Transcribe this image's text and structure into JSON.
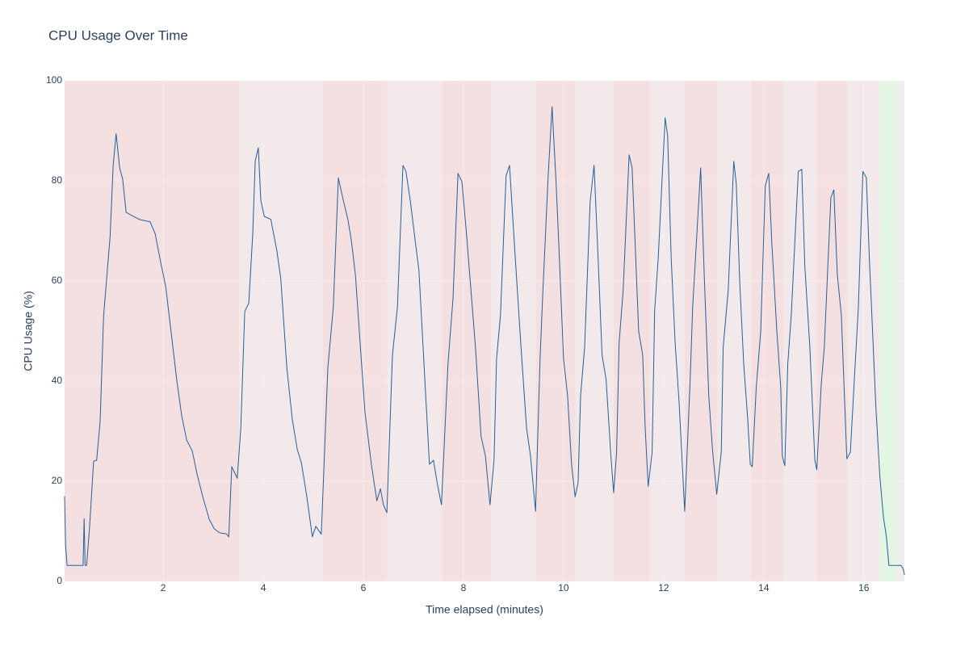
{
  "chart_data": {
    "type": "line",
    "title": "CPU Usage Over Time",
    "x_label": "Time elapsed (minutes)",
    "y_label": "CPU Usage (%)",
    "xlim": [
      0.03,
      16.81
    ],
    "ylim": [
      0,
      100
    ],
    "xticks": [
      2,
      4,
      6,
      8,
      10,
      12,
      14,
      16
    ],
    "yticks": [
      0,
      20,
      40,
      60,
      80,
      100
    ],
    "grid": true,
    "color": "#24609c",
    "shaded_regions": [
      {
        "x0": 0.03,
        "x1": 3.52,
        "color": "#f5e0e1"
      },
      {
        "x0": 3.52,
        "x1": 5.18,
        "color": "#f3e9eb"
      },
      {
        "x0": 5.18,
        "x1": 6.48,
        "color": "#f5e0e1"
      },
      {
        "x0": 6.48,
        "x1": 7.56,
        "color": "#f3e9eb"
      },
      {
        "x0": 7.56,
        "x1": 8.55,
        "color": "#f5e0e1"
      },
      {
        "x0": 8.55,
        "x1": 9.44,
        "color": "#f3e9eb"
      },
      {
        "x0": 9.44,
        "x1": 10.24,
        "color": "#f5e0e1"
      },
      {
        "x0": 10.24,
        "x1": 11.0,
        "color": "#f3e9eb"
      },
      {
        "x0": 11.0,
        "x1": 11.73,
        "color": "#f5e0e1"
      },
      {
        "x0": 11.73,
        "x1": 12.42,
        "color": "#f3e9eb"
      },
      {
        "x0": 12.42,
        "x1": 13.08,
        "color": "#f5e0e1"
      },
      {
        "x0": 13.08,
        "x1": 13.74,
        "color": "#f3e9eb"
      },
      {
        "x0": 13.74,
        "x1": 14.39,
        "color": "#f5e0e1"
      },
      {
        "x0": 14.39,
        "x1": 15.05,
        "color": "#f3e9eb"
      },
      {
        "x0": 15.05,
        "x1": 15.68,
        "color": "#f5e0e1"
      },
      {
        "x0": 15.68,
        "x1": 16.32,
        "color": "#f3e9eb"
      },
      {
        "x0": 16.32,
        "x1": 16.66,
        "color": "#e3f5e3"
      },
      {
        "x0": 16.66,
        "x1": 16.81,
        "color": "#eeeeee"
      }
    ],
    "x": [
      0.03,
      0.05,
      0.08,
      0.4,
      0.42,
      0.44,
      0.47,
      0.53,
      0.61,
      0.67,
      0.74,
      0.81,
      0.94,
      1.0,
      1.06,
      1.13,
      1.19,
      1.26,
      1.39,
      1.52,
      1.74,
      1.84,
      1.94,
      2.05,
      2.16,
      2.27,
      2.37,
      2.47,
      2.58,
      2.68,
      2.79,
      2.92,
      3.02,
      3.13,
      3.26,
      3.31,
      3.37,
      3.48,
      3.55,
      3.63,
      3.71,
      3.79,
      3.84,
      3.9,
      3.95,
      4.02,
      4.15,
      4.27,
      4.35,
      4.47,
      4.58,
      4.68,
      4.76,
      4.87,
      4.98,
      5.05,
      5.16,
      5.29,
      5.4,
      5.5,
      5.58,
      5.69,
      5.76,
      5.84,
      6.03,
      6.16,
      6.27,
      6.34,
      6.4,
      6.47,
      6.58,
      6.68,
      6.79,
      6.85,
      6.94,
      7.03,
      7.11,
      7.32,
      7.4,
      7.48,
      7.56,
      7.69,
      7.79,
      7.89,
      7.97,
      8.06,
      8.24,
      8.35,
      8.44,
      8.53,
      8.61,
      8.66,
      8.74,
      8.85,
      8.92,
      9.02,
      9.15,
      9.26,
      9.34,
      9.44,
      9.53,
      9.58,
      9.69,
      9.77,
      9.85,
      9.9,
      10.0,
      10.08,
      10.16,
      10.23,
      10.29,
      10.34,
      10.42,
      10.53,
      10.61,
      10.69,
      10.77,
      10.85,
      10.94,
      11.0,
      11.06,
      11.11,
      11.19,
      11.31,
      11.37,
      11.5,
      11.58,
      11.63,
      11.69,
      11.77,
      11.82,
      11.89,
      12.03,
      12.08,
      12.15,
      12.23,
      12.31,
      12.42,
      12.53,
      12.58,
      12.74,
      12.81,
      12.9,
      12.98,
      13.06,
      13.15,
      13.19,
      13.29,
      13.4,
      13.45,
      13.52,
      13.6,
      13.68,
      13.73,
      13.77,
      13.85,
      13.94,
      14.03,
      14.1,
      14.16,
      14.26,
      14.34,
      14.37,
      14.42,
      14.48,
      14.55,
      14.69,
      14.76,
      14.82,
      14.92,
      15.02,
      15.06,
      15.15,
      15.21,
      15.34,
      15.4,
      15.47,
      15.55,
      15.66,
      15.73,
      15.81,
      15.89,
      15.98,
      16.05,
      16.11,
      16.16,
      16.24,
      16.32,
      16.39,
      16.45,
      16.5,
      16.74,
      16.79,
      16.81
    ],
    "values": [
      17,
      7.3,
      3.2,
      3.2,
      12.5,
      3.2,
      3.2,
      11,
      24,
      24.2,
      32,
      53,
      69,
      83,
      89.4,
      82.6,
      80.3,
      73.7,
      73,
      72.3,
      71.8,
      69.4,
      64.2,
      58.9,
      49.7,
      40.3,
      33.1,
      28.2,
      26.1,
      21.3,
      16.9,
      12.4,
      10.5,
      9.7,
      9.5,
      8.9,
      22.9,
      20.6,
      30.6,
      53.9,
      55.6,
      69.4,
      84,
      86.6,
      76.1,
      72.9,
      72.3,
      66.1,
      60.5,
      42.7,
      32.3,
      26.3,
      23.7,
      16.9,
      8.9,
      11,
      9.4,
      42.7,
      54.8,
      80.6,
      76.9,
      72.3,
      68.1,
      61.3,
      33.9,
      23.4,
      16.1,
      18.5,
      15.3,
      13.7,
      45.2,
      54.8,
      83.1,
      81.9,
      75.8,
      68.5,
      62.1,
      23.4,
      24.2,
      19.4,
      15.3,
      43.5,
      56.5,
      81.5,
      79.8,
      69.4,
      46.8,
      29,
      25,
      15.3,
      24.2,
      44.4,
      53.2,
      81,
      83.1,
      66.9,
      46.8,
      30.6,
      25,
      14,
      44.4,
      56.5,
      80.6,
      94.8,
      79.8,
      68.5,
      44.4,
      37.1,
      23.4,
      16.9,
      19.7,
      37.1,
      46.8,
      75.8,
      83.1,
      64.5,
      45.2,
      40.3,
      25.8,
      17.7,
      25.8,
      47.6,
      58.1,
      85.2,
      82.6,
      50,
      45.2,
      30.6,
      19,
      25.8,
      54,
      64.5,
      92.6,
      89,
      64.5,
      47.6,
      35.5,
      14,
      40.3,
      54.8,
      82.6,
      61.3,
      37.1,
      25.8,
      17.4,
      25.8,
      46.8,
      58.1,
      83.9,
      79.4,
      59.7,
      43.5,
      32.3,
      23.4,
      22.9,
      38.7,
      50,
      79,
      81.5,
      67.7,
      50,
      38.7,
      25,
      23.1,
      43.5,
      53.2,
      81.9,
      82.3,
      62.9,
      46.8,
      24.2,
      22.3,
      39.5,
      46.8,
      76.6,
      78.2,
      61.3,
      53.2,
      24.5,
      25.8,
      40.3,
      54.8,
      81.9,
      80.6,
      64.5,
      53.2,
      34.7,
      21,
      12.9,
      8.9,
      3.2,
      3.2,
      2.4,
      1.3
    ]
  }
}
